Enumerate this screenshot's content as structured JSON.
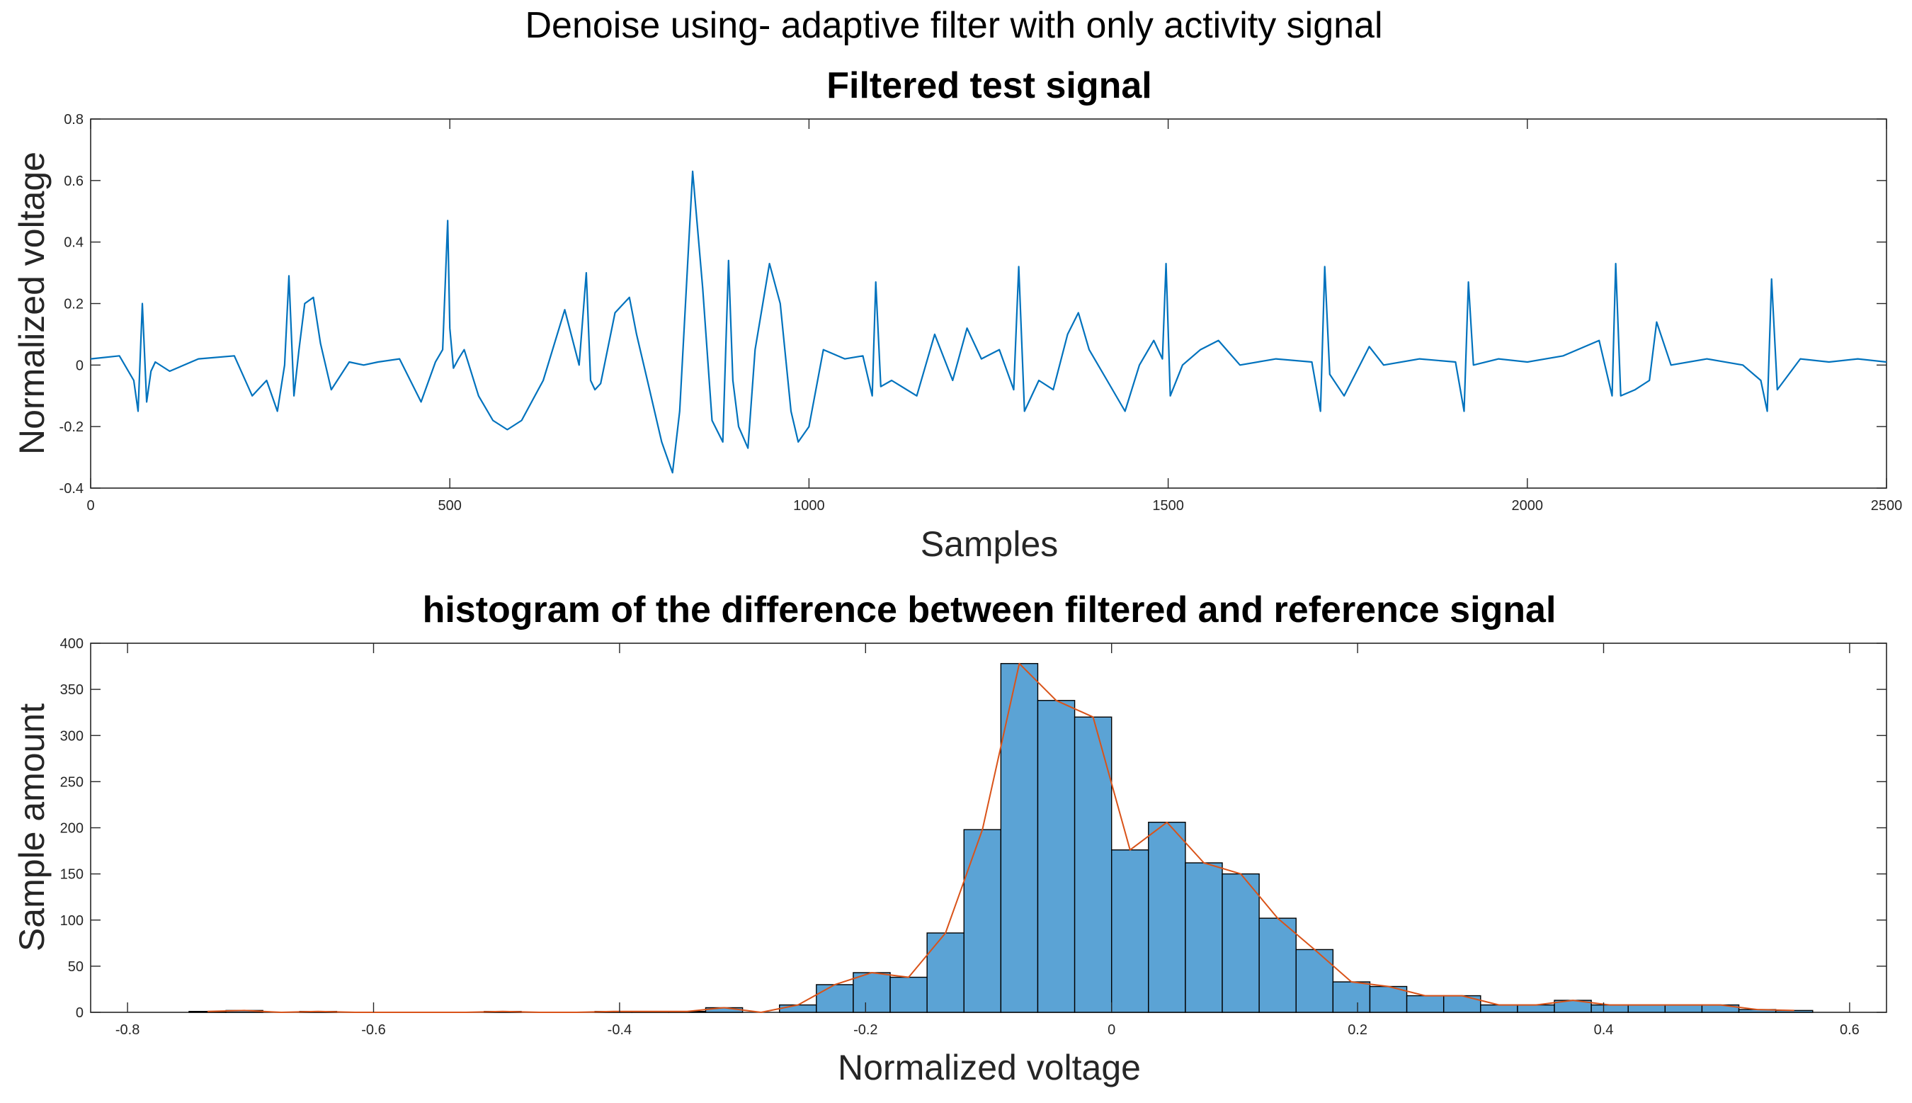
{
  "figure": {
    "suptitle": "Denoise using- adaptive filter with only activity signal"
  },
  "chart_data": [
    {
      "type": "line",
      "title": "Filtered test signal",
      "xlabel": "Samples",
      "ylabel": "Normalized voltage",
      "xlim": [
        0,
        2500
      ],
      "ylim": [
        -0.4,
        0.8
      ],
      "xticks": [
        0,
        500,
        1000,
        1500,
        2000,
        2500
      ],
      "xtick_labels": [
        "0",
        "500",
        "1000",
        "1500",
        "2000",
        "2500"
      ],
      "yticks": [
        -0.4,
        -0.2,
        0,
        0.2,
        0.4,
        0.6,
        0.8
      ],
      "ytick_labels": [
        "-0.4",
        "-0.2",
        "0",
        "0.2",
        "0.4",
        "0.6",
        "0.8"
      ],
      "line_color": "#0072BD",
      "x": [
        0,
        40,
        60,
        66,
        72,
        78,
        84,
        90,
        110,
        150,
        200,
        225,
        245,
        260,
        270,
        276,
        283,
        290,
        298,
        310,
        320,
        335,
        360,
        380,
        400,
        430,
        460,
        480,
        490,
        497,
        500,
        505,
        512,
        520,
        540,
        560,
        580,
        600,
        630,
        660,
        680,
        690,
        696,
        702,
        710,
        730,
        750,
        760,
        775,
        795,
        810,
        820,
        838,
        852,
        865,
        880,
        888,
        894,
        902,
        915,
        925,
        945,
        960,
        975,
        985,
        1000,
        1020,
        1050,
        1075,
        1088,
        1093,
        1100,
        1115,
        1150,
        1175,
        1200,
        1220,
        1240,
        1265,
        1285,
        1292,
        1300,
        1320,
        1340,
        1360,
        1375,
        1390,
        1415,
        1440,
        1460,
        1480,
        1492,
        1497,
        1503,
        1520,
        1545,
        1570,
        1600,
        1650,
        1700,
        1712,
        1718,
        1725,
        1745,
        1780,
        1800,
        1850,
        1900,
        1912,
        1918,
        1925,
        1960,
        2000,
        2050,
        2100,
        2118,
        2123,
        2130,
        2150,
        2170,
        2180,
        2200,
        2250,
        2300,
        2325,
        2334,
        2340,
        2348,
        2380,
        2420,
        2460,
        2500
      ],
      "y": [
        0.02,
        0.03,
        -0.05,
        -0.15,
        0.2,
        -0.12,
        -0.02,
        0.01,
        -0.02,
        0.02,
        0.03,
        -0.1,
        -0.05,
        -0.15,
        0.0,
        0.29,
        -0.1,
        0.05,
        0.2,
        0.22,
        0.07,
        -0.08,
        0.01,
        0.0,
        0.01,
        0.02,
        -0.12,
        0.01,
        0.05,
        0.47,
        0.12,
        -0.01,
        0.02,
        0.05,
        -0.1,
        -0.18,
        -0.21,
        -0.18,
        -0.05,
        0.18,
        0.0,
        0.3,
        -0.05,
        -0.08,
        -0.06,
        0.17,
        0.22,
        0.1,
        -0.05,
        -0.25,
        -0.35,
        -0.15,
        0.63,
        0.25,
        -0.18,
        -0.25,
        0.34,
        -0.05,
        -0.2,
        -0.27,
        0.05,
        0.33,
        0.2,
        -0.15,
        -0.25,
        -0.2,
        0.05,
        0.02,
        0.03,
        -0.1,
        0.27,
        -0.07,
        -0.05,
        -0.1,
        0.1,
        -0.05,
        0.12,
        0.02,
        0.05,
        -0.08,
        0.32,
        -0.15,
        -0.05,
        -0.08,
        0.1,
        0.17,
        0.05,
        -0.05,
        -0.15,
        0.0,
        0.08,
        0.02,
        0.33,
        -0.1,
        0.0,
        0.05,
        0.08,
        0.0,
        0.02,
        0.01,
        -0.15,
        0.32,
        -0.03,
        -0.1,
        0.06,
        0.0,
        0.02,
        0.01,
        -0.15,
        0.27,
        0.0,
        0.02,
        0.01,
        0.03,
        0.08,
        -0.1,
        0.33,
        -0.1,
        -0.08,
        -0.05,
        0.14,
        0.0,
        0.02,
        0.0,
        -0.05,
        -0.15,
        0.28,
        -0.08,
        0.02,
        0.01,
        0.02,
        0.01
      ]
    },
    {
      "type": "bar",
      "title": "histogram of the difference between filtered and reference signal",
      "xlabel": "Normalized voltage",
      "ylabel": "Sample amount",
      "xlim": [
        -0.83,
        0.63
      ],
      "ylim": [
        0,
        400
      ],
      "xticks": [
        -0.8,
        -0.6,
        -0.4,
        -0.2,
        0,
        0.2,
        0.4,
        0.6
      ],
      "xtick_labels": [
        "-0.8",
        "-0.6",
        "-0.4",
        "-0.2",
        "0",
        "0.2",
        "0.4",
        "0.6"
      ],
      "yticks": [
        0,
        50,
        100,
        150,
        200,
        250,
        300,
        350,
        400
      ],
      "ytick_labels": [
        "0",
        "50",
        "100",
        "150",
        "200",
        "250",
        "300",
        "350",
        "400"
      ],
      "bar_color": "#5BA3D5",
      "curve_color": "#D95319",
      "bin_width": 0.03,
      "bin_centers": [
        -0.735,
        -0.705,
        -0.675,
        -0.645,
        -0.615,
        -0.585,
        -0.555,
        -0.525,
        -0.495,
        -0.465,
        -0.435,
        -0.405,
        -0.375,
        -0.345,
        -0.315,
        -0.285,
        -0.255,
        -0.225,
        -0.195,
        -0.165,
        -0.135,
        -0.105,
        -0.075,
        -0.045,
        -0.015,
        0.015,
        0.045,
        0.075,
        0.105,
        0.135,
        0.165,
        0.195,
        0.225,
        0.255,
        0.285,
        0.315,
        0.345,
        0.375,
        0.405,
        0.435,
        0.465,
        0.495,
        0.525,
        0.555
      ],
      "values": [
        1,
        2,
        0,
        1,
        0,
        0,
        0,
        0,
        1,
        0,
        0,
        1,
        1,
        1,
        5,
        0,
        8,
        30,
        43,
        38,
        86,
        198,
        378,
        338,
        320,
        176,
        206,
        162,
        150,
        102,
        68,
        33,
        28,
        18,
        18,
        8,
        8,
        13,
        8,
        8,
        8,
        8,
        3,
        2
      ]
    }
  ]
}
